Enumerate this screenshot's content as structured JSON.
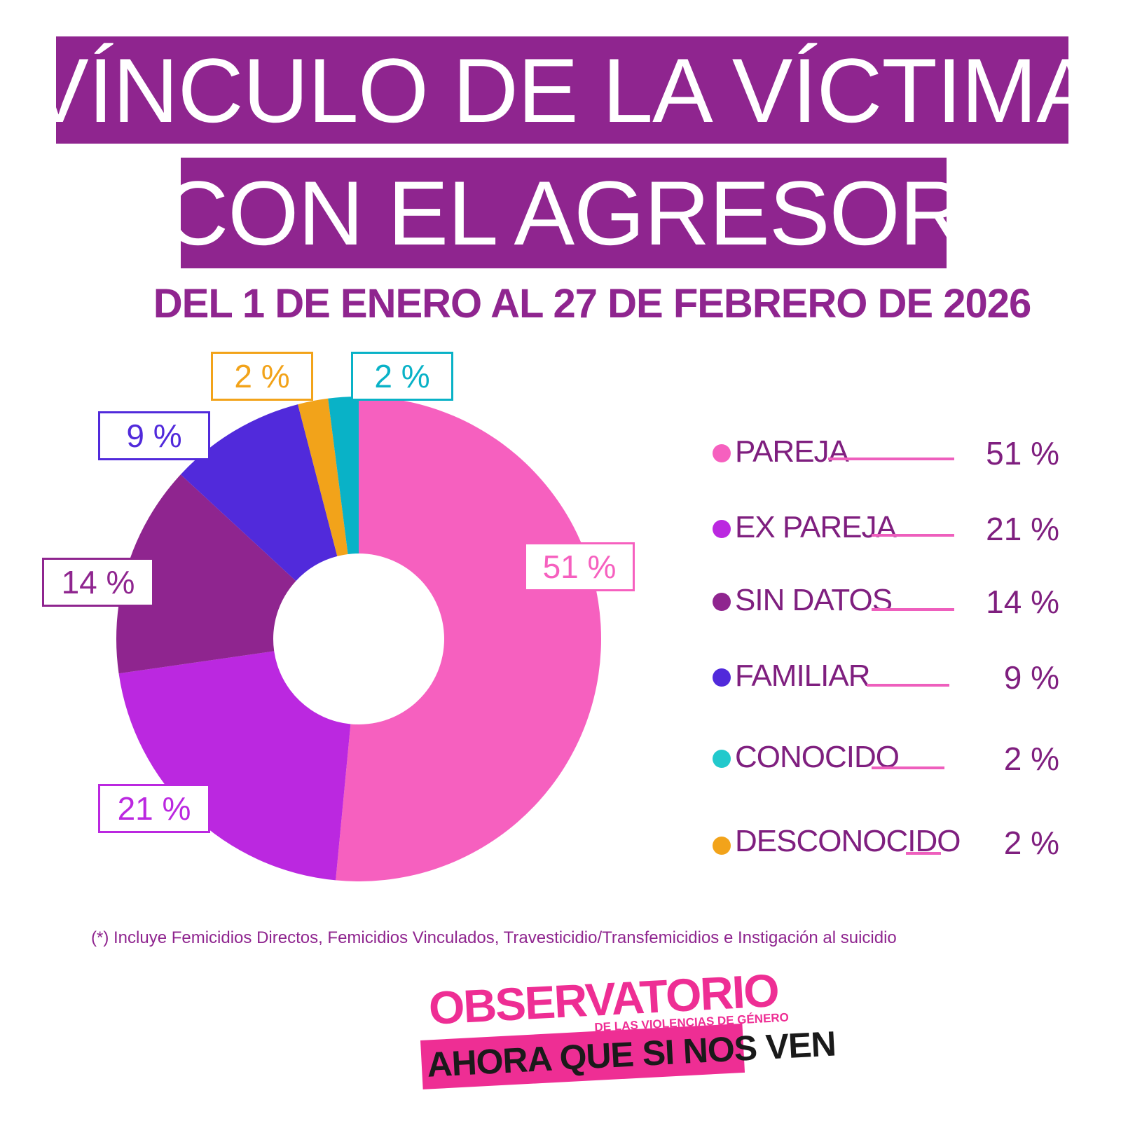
{
  "header": {
    "title_line1": "VÍNCULO DE LA VÍCTIMA",
    "title_line2": "CON EL AGRESOR",
    "subtitle": "DEL 1 DE ENERO AL 27 DE FEBRERO DE 2026"
  },
  "chart_data": {
    "type": "pie",
    "donut": true,
    "categories": [
      "PAREJA",
      "EX PAREJA",
      "SIN DATOS",
      "FAMILIAR",
      "DESCONOCIDO",
      "CONOCIDO"
    ],
    "values": [
      51,
      21,
      14,
      9,
      2,
      2
    ],
    "value_labels": [
      "51 %",
      "21 %",
      "14 %",
      "9 %",
      "2 %",
      "2 %"
    ],
    "colors": [
      "#f660bf",
      "#bb28e0",
      "#8f258f",
      "#512adb",
      "#f2a31a",
      "#09b2c7"
    ],
    "legend_placement": "right"
  },
  "legend": {
    "items": [
      {
        "label": "PAREJA",
        "value": "51 %",
        "color": "#f660bf"
      },
      {
        "label": "EX PAREJA",
        "value": "21 %",
        "color": "#bb28e0"
      },
      {
        "label": "SIN DATOS",
        "value": "14 %",
        "color": "#8f258f"
      },
      {
        "label": "FAMILIAR",
        "value": "9 %",
        "color": "#512adb"
      },
      {
        "label": "CONOCIDO",
        "value": "2 %",
        "color": "#22c9cc"
      },
      {
        "label": "DESCONOCIDO",
        "value": "2 %",
        "color": "#f2a31a"
      }
    ]
  },
  "footnote": "(*) Incluye Femicidios Directos, Femicidios Vinculados,  Travesticidio/Transfemicidios e Instigación al suicidio",
  "logo": {
    "main": "OBSERVATORIO",
    "sub": "DE LAS VIOLENCIAS DE GÉNERO",
    "tagline": "AHORA QUE SI NOS VEN"
  }
}
